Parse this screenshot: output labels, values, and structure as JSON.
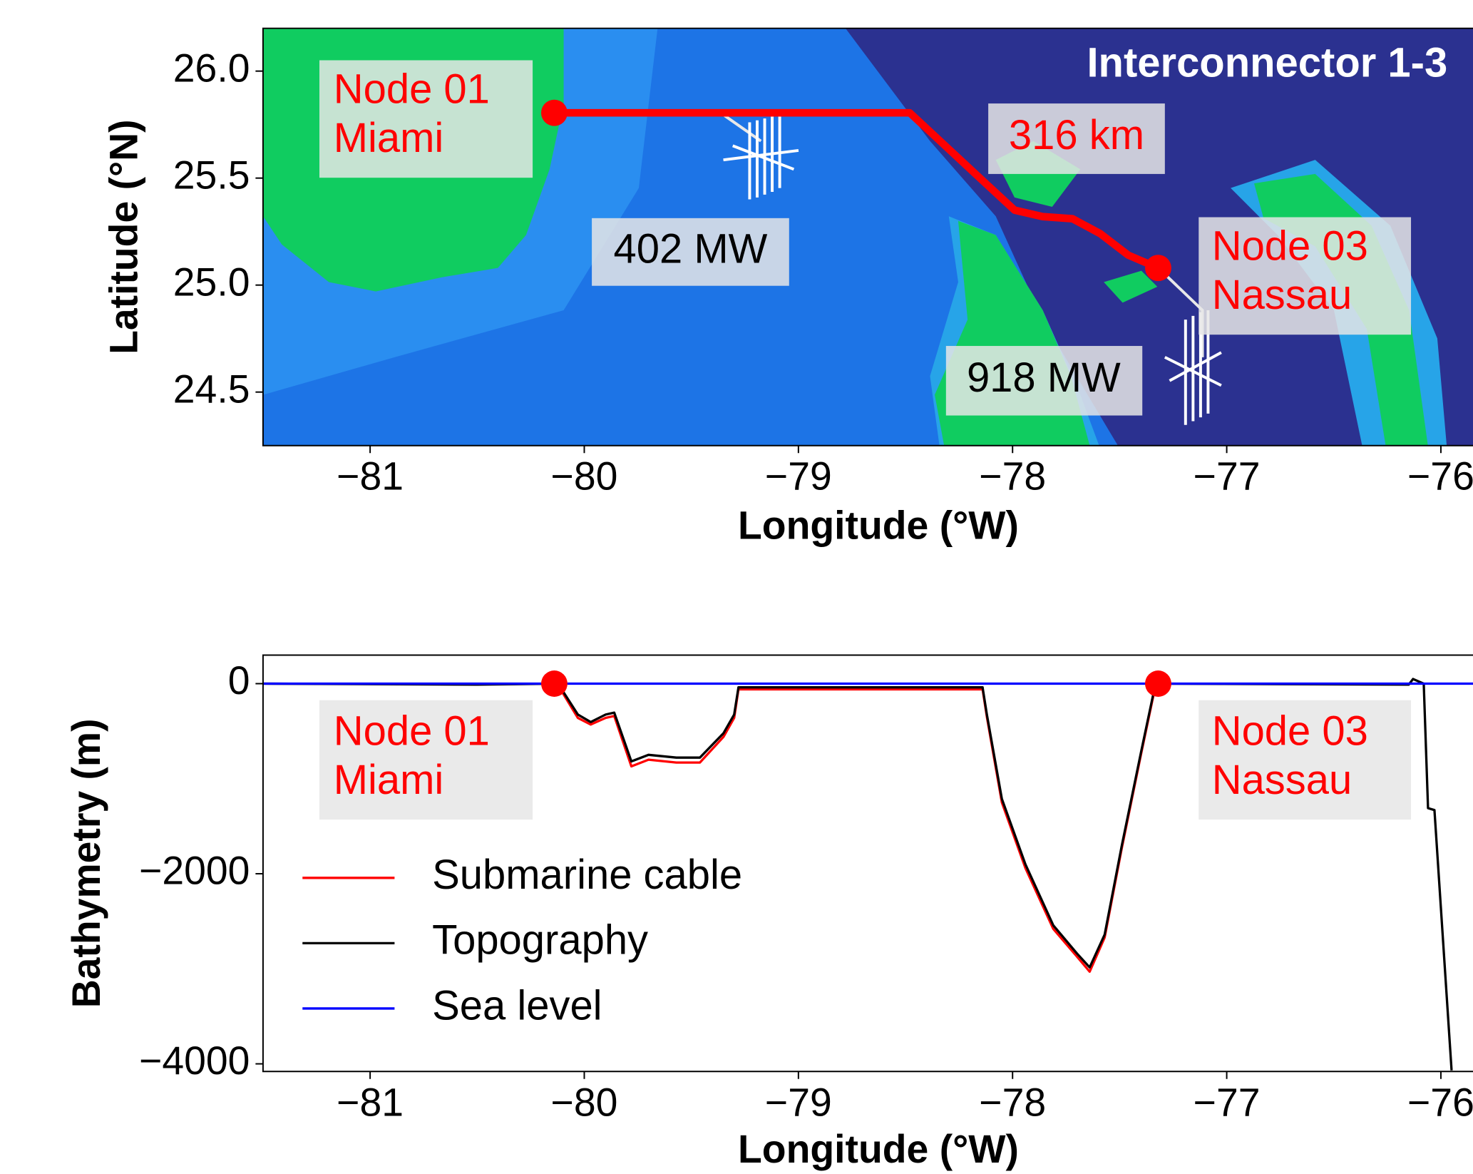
{
  "chart_data": [
    {
      "type": "map",
      "xlabel": "Longitude (°W)",
      "ylabel": "Latitude (°N)",
      "xlim": [
        -81.5,
        -75.85
      ],
      "ylim": [
        24.25,
        26.2
      ],
      "xticks": [
        {
          "value": -81,
          "label": "−81"
        },
        {
          "value": -80,
          "label": "−80"
        },
        {
          "value": -79,
          "label": "−79"
        },
        {
          "value": -78,
          "label": "−78"
        },
        {
          "value": -77,
          "label": "−77"
        },
        {
          "value": -76,
          "label": "−76"
        }
      ],
      "yticks": [
        {
          "value": 26,
          "label": "26.0"
        },
        25.5,
        {
          "value": 25,
          "label": "25.0"
        },
        24.5
      ],
      "route": {
        "x": [
          -80.14,
          -78.48,
          -78.12,
          -77.99,
          -77.86,
          -77.72,
          -77.59,
          -77.46,
          -77.32
        ],
        "y": [
          25.805,
          25.805,
          25.47,
          25.35,
          25.32,
          25.31,
          25.24,
          25.14,
          25.08
        ],
        "color": "#ff0000"
      },
      "nodes": {
        "x": [
          -80.14,
          -77.32
        ],
        "y": [
          25.805,
          25.08
        ],
        "color": "#ff0000"
      },
      "annotations": [
        [
          "Node 01",
          "Miami"
        ],
        [
          "316 km"
        ],
        [
          "402 MW"
        ],
        [
          "918 MW"
        ],
        [
          "Node 03",
          "Nassau"
        ],
        [
          "Interconnector 1-3"
        ]
      ]
    },
    {
      "type": "line",
      "xlabel": "Longitude (°W)",
      "ylabel": "Bathymetry (m)",
      "xlim": [
        -81.5,
        -75.85
      ],
      "ylim": [
        -4080,
        300
      ],
      "xticks": [
        {
          "value": -81,
          "label": "−81"
        },
        {
          "value": -80,
          "label": "−80"
        },
        {
          "value": -79,
          "label": "−79"
        },
        {
          "value": -78,
          "label": "−78"
        },
        {
          "value": -77,
          "label": "−77"
        },
        {
          "value": -76,
          "label": "−76"
        }
      ],
      "yticks": [
        0,
        {
          "value": -2000,
          "label": "−2000"
        },
        {
          "value": -4000,
          "label": "−4000"
        }
      ],
      "legend": "lower left",
      "series": [
        {
          "name": "Submarine cable",
          "color": "#ff0000",
          "x": [
            -80.14,
            -80.1,
            -80.03,
            -79.97,
            -79.9,
            -79.86,
            -79.78,
            -79.7,
            -79.57,
            -79.46,
            -79.35,
            -79.3,
            -79.28,
            -78.14,
            -78.12,
            -78.05,
            -77.94,
            -77.81,
            -77.7,
            -77.64,
            -77.57,
            -77.49,
            -77.4,
            -77.34,
            -77.32
          ],
          "values": [
            0,
            -100,
            -360,
            -430,
            -360,
            -340,
            -870,
            -800,
            -830,
            -830,
            -560,
            -360,
            -60,
            -60,
            -350,
            -1250,
            -1940,
            -2580,
            -2870,
            -3030,
            -2670,
            -1730,
            -740,
            -100,
            0
          ]
        },
        {
          "name": "Topography",
          "color": "#000000",
          "x": [
            -81.5,
            -80.5,
            -80.14,
            -80.1,
            -80.03,
            -79.97,
            -79.9,
            -79.86,
            -79.78,
            -79.7,
            -79.57,
            -79.46,
            -79.35,
            -79.3,
            -79.28,
            -78.14,
            -78.12,
            -78.05,
            -77.94,
            -77.81,
            -77.7,
            -77.64,
            -77.57,
            -77.49,
            -77.4,
            -77.34,
            -77.32,
            -76.15,
            -76.13,
            -76.08,
            -76.06,
            -76.03,
            -75.95
          ],
          "values": [
            0,
            -10,
            0,
            -79,
            -325,
            -404,
            -325,
            -305,
            -818,
            -749,
            -778,
            -778,
            -522,
            -325,
            -39,
            -39,
            -325,
            -1212,
            -1901,
            -2542,
            -2837,
            -2985,
            -2640,
            -1704,
            -719,
            -79,
            0,
            -10,
            49,
            0,
            -1310,
            -1330,
            -4069
          ]
        },
        {
          "name": "Sea level",
          "color": "#0000ff",
          "x": [
            -81.5,
            -75.85
          ],
          "values": [
            0,
            0
          ]
        }
      ],
      "nodes": {
        "x": [
          -80.14,
          -77.32
        ],
        "y": [
          0,
          0
        ],
        "color": "#ff0000"
      },
      "annotations": [
        [
          "Node 01",
          "Miami"
        ],
        [
          "Node 03",
          "Nassau"
        ]
      ]
    }
  ]
}
